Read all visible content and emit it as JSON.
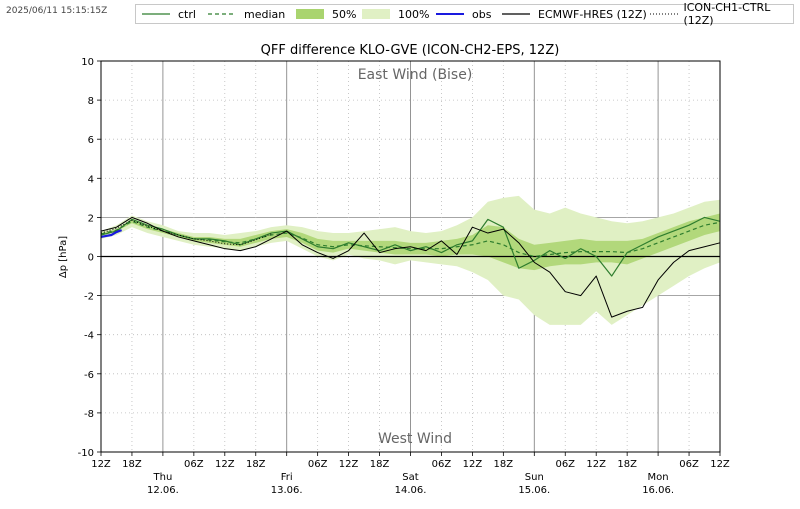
{
  "timestamp": "2025/06/11 15:15:15Z",
  "legend": [
    {
      "key": "ctrl",
      "label": "ctrl",
      "style": "line",
      "color": "#2e7d2e"
    },
    {
      "key": "median",
      "label": "median",
      "style": "dashed",
      "color": "#2e7d2e"
    },
    {
      "key": "p50",
      "label": "50%",
      "style": "fill",
      "color": "#a9d46f"
    },
    {
      "key": "p100",
      "label": "100%",
      "style": "fill",
      "color": "#e0f0c4"
    },
    {
      "key": "obs",
      "label": "obs",
      "style": "line",
      "color": "#1a1adf"
    },
    {
      "key": "ecmwf",
      "label": "ECMWF-HRES (12Z)",
      "style": "line",
      "color": "#000000"
    },
    {
      "key": "ich1",
      "label": "ICON-CH1-CTRL (12Z)",
      "style": "dotted",
      "color": "#000000"
    }
  ],
  "chart_data": {
    "type": "line",
    "title": "QFF difference KLO-GVE (ICON-CH2-EPS, 12Z)",
    "ylabel": "Δp [hPa]",
    "ylim": [
      -10,
      10
    ],
    "yticks": [
      -10,
      -8,
      -6,
      -4,
      -2,
      0,
      2,
      4,
      6,
      8,
      10
    ],
    "xlim_hours": [
      0,
      120
    ],
    "annotations": {
      "top": "East Wind (Bise)",
      "bottom": "West Wind"
    },
    "xticks": [
      {
        "h": 0,
        "label": "12Z"
      },
      {
        "h": 6,
        "label": "18Z"
      },
      {
        "h": 18,
        "label": "06Z"
      },
      {
        "h": 24,
        "label": "12Z"
      },
      {
        "h": 30,
        "label": "18Z"
      },
      {
        "h": 42,
        "label": "06Z"
      },
      {
        "h": 48,
        "label": "12Z"
      },
      {
        "h": 54,
        "label": "18Z"
      },
      {
        "h": 66,
        "label": "06Z"
      },
      {
        "h": 72,
        "label": "12Z"
      },
      {
        "h": 78,
        "label": "18Z"
      },
      {
        "h": 90,
        "label": "06Z"
      },
      {
        "h": 96,
        "label": "12Z"
      },
      {
        "h": 102,
        "label": "18Z"
      },
      {
        "h": 114,
        "label": "06Z"
      },
      {
        "h": 120,
        "label": "12Z"
      }
    ],
    "day_ticks": [
      {
        "h": 12,
        "day": "Thu",
        "date": "12.06."
      },
      {
        "h": 36,
        "day": "Fri",
        "date": "13.06."
      },
      {
        "h": 60,
        "day": "Sat",
        "date": "14.06."
      },
      {
        "h": 84,
        "day": "Sun",
        "date": "15.06."
      },
      {
        "h": 108,
        "day": "Mon",
        "date": "16.06."
      }
    ],
    "series": [
      {
        "name": "100%",
        "kind": "band",
        "x": [
          0,
          3,
          6,
          9,
          12,
          15,
          18,
          21,
          24,
          27,
          30,
          33,
          36,
          39,
          42,
          45,
          48,
          51,
          54,
          57,
          60,
          63,
          66,
          69,
          72,
          75,
          78,
          81,
          84,
          87,
          90,
          93,
          96,
          99,
          102,
          105,
          108,
          111,
          114,
          117,
          120
        ],
        "lower": [
          0.9,
          1.1,
          1.5,
          1.2,
          1.0,
          0.8,
          0.6,
          0.5,
          0.4,
          0.3,
          0.5,
          0.7,
          0.8,
          0.4,
          0.0,
          -0.2,
          0.1,
          -0.1,
          -0.2,
          -0.4,
          -0.2,
          -0.3,
          -0.4,
          -0.5,
          -0.8,
          -1.2,
          -2.0,
          -2.2,
          -3.0,
          -3.5,
          -3.5,
          -3.5,
          -2.8,
          -3.5,
          -3.0,
          -2.5,
          -2.0,
          -1.5,
          -1.0,
          -0.6,
          -0.3
        ],
        "upper": [
          1.3,
          1.6,
          2.1,
          1.8,
          1.6,
          1.3,
          1.2,
          1.2,
          1.1,
          1.2,
          1.3,
          1.5,
          1.6,
          1.5,
          1.3,
          1.2,
          1.2,
          1.3,
          1.4,
          1.5,
          1.3,
          1.2,
          1.3,
          1.6,
          2.0,
          2.8,
          3.0,
          3.1,
          2.4,
          2.2,
          2.5,
          2.2,
          2.0,
          1.8,
          1.7,
          1.8,
          2.0,
          2.2,
          2.5,
          2.8,
          2.9
        ]
      },
      {
        "name": "50%",
        "kind": "band",
        "x": [
          0,
          3,
          6,
          9,
          12,
          15,
          18,
          21,
          24,
          27,
          30,
          33,
          36,
          39,
          42,
          45,
          48,
          51,
          54,
          57,
          60,
          63,
          66,
          69,
          72,
          75,
          78,
          81,
          84,
          87,
          90,
          93,
          96,
          99,
          102,
          105,
          108,
          111,
          114,
          117,
          120
        ],
        "lower": [
          1.1,
          1.3,
          1.7,
          1.4,
          1.2,
          1.0,
          0.8,
          0.7,
          0.6,
          0.5,
          0.7,
          0.9,
          1.0,
          0.7,
          0.3,
          0.2,
          0.4,
          0.3,
          0.2,
          0.1,
          0.1,
          0.1,
          0.0,
          0.1,
          0.1,
          0.0,
          -0.3,
          -0.6,
          -0.7,
          -0.5,
          -0.4,
          -0.4,
          -0.3,
          -0.3,
          -0.4,
          -0.1,
          0.2,
          0.5,
          0.8,
          1.1,
          1.3
        ]
      },
      {
        "name": "50%-upper",
        "kind": "band-upper",
        "upper": [
          1.2,
          1.4,
          1.9,
          1.6,
          1.4,
          1.2,
          1.0,
          1.0,
          0.9,
          0.9,
          1.1,
          1.3,
          1.4,
          1.2,
          0.9,
          0.8,
          0.8,
          0.8,
          0.8,
          0.8,
          0.7,
          0.7,
          0.8,
          0.9,
          1.1,
          1.6,
          1.5,
          0.9,
          0.6,
          0.7,
          0.8,
          0.9,
          0.8,
          0.8,
          0.8,
          0.9,
          1.2,
          1.5,
          1.8,
          2.0,
          2.2
        ]
      },
      {
        "name": "median",
        "kind": "dashed",
        "color": "#2e7d2e",
        "x": [
          0,
          3,
          6,
          9,
          12,
          15,
          18,
          21,
          24,
          27,
          30,
          33,
          36,
          39,
          42,
          45,
          48,
          51,
          54,
          57,
          60,
          63,
          66,
          69,
          72,
          75,
          78,
          81,
          84,
          87,
          90,
          93,
          96,
          99,
          102,
          105,
          108,
          111,
          114,
          117,
          120
        ],
        "y": [
          1.15,
          1.35,
          1.8,
          1.5,
          1.3,
          1.1,
          0.9,
          0.85,
          0.75,
          0.7,
          0.9,
          1.1,
          1.2,
          0.95,
          0.6,
          0.5,
          0.6,
          0.55,
          0.5,
          0.45,
          0.4,
          0.4,
          0.4,
          0.5,
          0.6,
          0.8,
          0.6,
          0.2,
          0.0,
          0.1,
          0.2,
          0.25,
          0.25,
          0.25,
          0.2,
          0.4,
          0.7,
          1.0,
          1.3,
          1.6,
          1.75
        ]
      },
      {
        "name": "ctrl",
        "kind": "line",
        "color": "#2e7d2e",
        "x": [
          0,
          3,
          6,
          9,
          12,
          15,
          18,
          21,
          24,
          27,
          30,
          33,
          36,
          39,
          42,
          45,
          48,
          51,
          54,
          57,
          60,
          63,
          66,
          69,
          72,
          75,
          78,
          81,
          84,
          87,
          90,
          93,
          96,
          99,
          102,
          105,
          108,
          111,
          114,
          117,
          120
        ],
        "y": [
          1.1,
          1.3,
          1.9,
          1.6,
          1.4,
          1.1,
          0.9,
          0.9,
          0.8,
          0.6,
          0.9,
          1.2,
          1.3,
          0.9,
          0.5,
          0.4,
          0.7,
          0.5,
          0.3,
          0.6,
          0.3,
          0.5,
          0.2,
          0.6,
          0.8,
          1.9,
          1.5,
          -0.6,
          -0.2,
          0.3,
          -0.1,
          0.4,
          0.0,
          -1.0,
          0.2,
          0.6,
          1.0,
          1.3,
          1.6,
          2.0,
          1.8
        ]
      },
      {
        "name": "obs",
        "kind": "line",
        "color": "#1a1adf",
        "x": [
          0,
          1,
          2,
          3,
          4
        ],
        "y": [
          1.0,
          1.05,
          1.1,
          1.25,
          1.35
        ]
      },
      {
        "name": "ECMWF-HRES (12Z)",
        "kind": "line",
        "color": "#000000",
        "x": [
          0,
          3,
          6,
          9,
          12,
          15,
          18,
          21,
          24,
          27,
          30,
          33,
          36,
          39,
          42,
          45,
          48,
          51,
          54,
          57,
          60,
          63,
          66,
          69,
          72,
          75,
          78,
          81,
          84,
          87,
          90,
          93,
          96,
          99,
          102,
          105,
          108,
          111,
          114,
          117,
          120
        ],
        "y": [
          1.3,
          1.5,
          2.0,
          1.7,
          1.3,
          1.0,
          0.8,
          0.6,
          0.4,
          0.3,
          0.5,
          0.9,
          1.3,
          0.6,
          0.2,
          -0.1,
          0.3,
          1.2,
          0.2,
          0.4,
          0.5,
          0.3,
          0.8,
          0.1,
          1.5,
          1.2,
          1.4,
          0.7,
          -0.3,
          -0.8,
          -1.8,
          -2.0,
          -1.0,
          -3.1,
          -2.8,
          -2.6,
          -1.2,
          -0.3,
          0.3,
          0.5,
          0.7
        ]
      },
      {
        "name": "ICON-CH1-CTRL (12Z)",
        "kind": "dotted",
        "color": "#000000",
        "x": [
          0,
          3,
          6,
          9,
          12,
          15,
          18,
          21,
          24,
          27,
          30,
          33
        ],
        "y": [
          1.2,
          1.45,
          1.85,
          1.55,
          1.3,
          1.1,
          0.9,
          0.8,
          0.65,
          0.6,
          0.85,
          1.15
        ]
      }
    ]
  }
}
